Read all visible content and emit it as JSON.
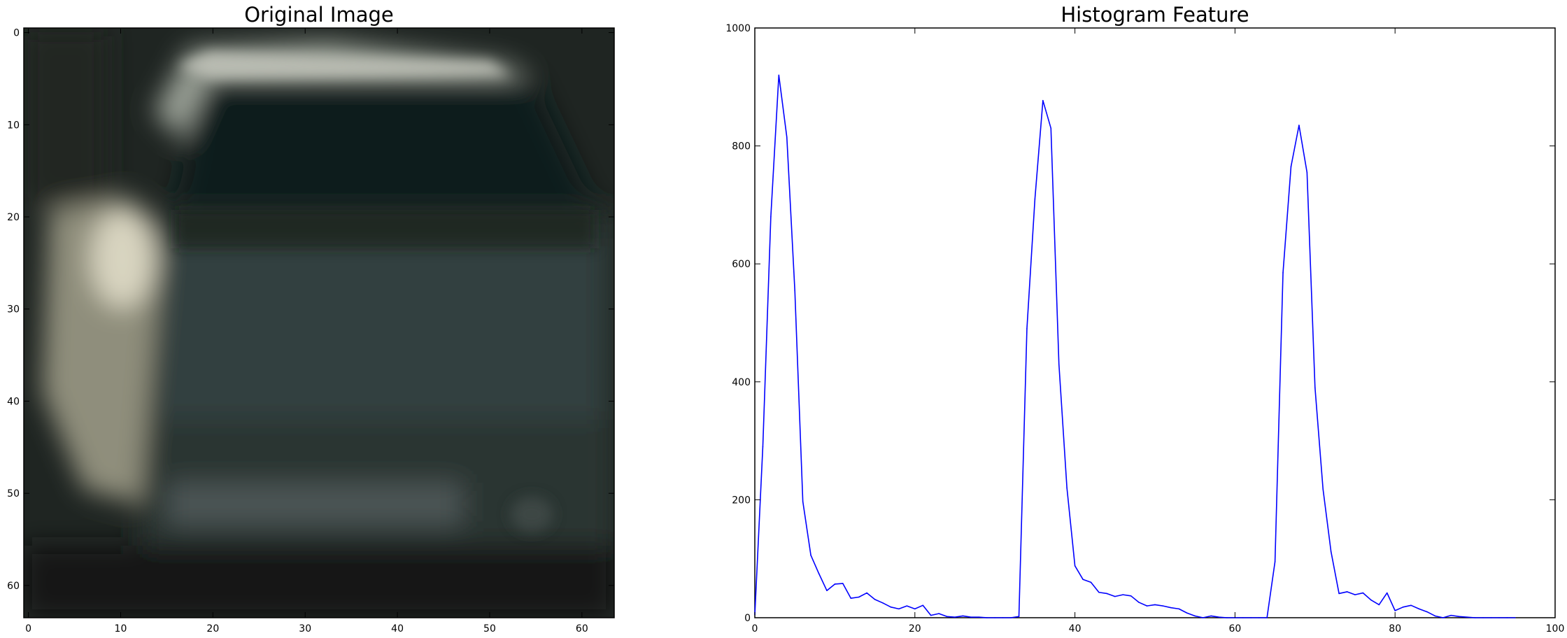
{
  "chart_data": [
    {
      "type": "image",
      "title": "Original Image",
      "xlim": [
        -0.5,
        63.5
      ],
      "ylim": [
        63.5,
        -0.5
      ],
      "xticks": [
        0,
        10,
        20,
        30,
        40,
        50,
        60
      ],
      "yticks": [
        0,
        10,
        20,
        30,
        40,
        50,
        60
      ],
      "image_description_colors": {
        "background": "#1f2522",
        "car_body": "#2c3a3a",
        "windshield": "#121e1c",
        "highlight": "#c9c6b4",
        "roof_edge": "#8e948c",
        "grille": "#465050",
        "shadow": "#141612"
      }
    },
    {
      "type": "line",
      "title": "Histogram Feature",
      "xlim": [
        0,
        100
      ],
      "ylim": [
        0,
        1000
      ],
      "xticks": [
        0,
        20,
        40,
        60,
        80,
        100
      ],
      "yticks": [
        0,
        200,
        400,
        600,
        800,
        1000
      ],
      "grid": false,
      "line_color": "#0000ff",
      "series": [
        {
          "x": [
            0,
            1,
            2,
            3,
            4,
            5,
            6,
            7,
            8,
            9,
            10,
            11,
            12,
            13,
            14,
            15,
            16,
            17,
            18,
            19,
            20,
            21,
            22,
            23,
            24,
            25,
            26,
            27,
            28,
            29,
            30,
            31,
            32,
            33,
            34,
            35,
            36,
            37,
            38,
            39,
            40,
            41,
            42,
            43,
            44,
            45,
            46,
            47,
            48,
            49,
            50,
            51,
            52,
            53,
            54,
            55,
            56,
            57,
            58,
            59,
            60,
            61,
            62,
            63,
            64,
            65,
            66,
            67,
            68,
            69,
            70,
            71,
            72,
            73,
            74,
            75,
            76,
            77,
            78,
            79,
            80,
            81,
            82,
            83,
            84,
            85,
            86,
            87,
            88,
            89,
            90,
            91,
            92,
            93,
            94,
            95
          ],
          "y": [
            5,
            290,
            680,
            920,
            815,
            555,
            197,
            106,
            75,
            46,
            57,
            58,
            33,
            35,
            42,
            31,
            25,
            18,
            15,
            20,
            15,
            21,
            4,
            7,
            2,
            1,
            3,
            1,
            1,
            0,
            0,
            0,
            0,
            2,
            490,
            710,
            877,
            830,
            430,
            220,
            88,
            65,
            60,
            43,
            41,
            36,
            39,
            37,
            26,
            20,
            22,
            20,
            17,
            15,
            8,
            3,
            0,
            3,
            1,
            0,
            0,
            0,
            0,
            0,
            0,
            95,
            585,
            765,
            835,
            755,
            390,
            218,
            112,
            41,
            44,
            39,
            42,
            30,
            22,
            42,
            12,
            18,
            21,
            15,
            10,
            3,
            0,
            4,
            2,
            1,
            0,
            0,
            0,
            0,
            0,
            0
          ]
        }
      ]
    }
  ]
}
